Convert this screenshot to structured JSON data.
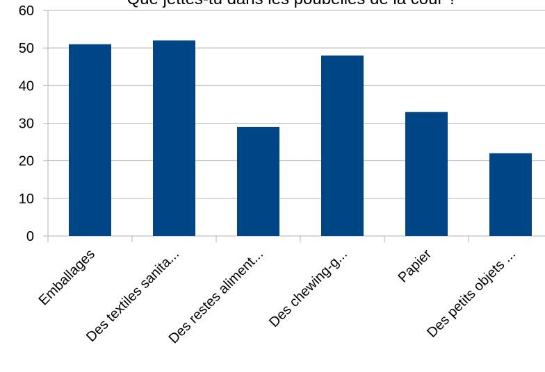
{
  "chart_data": {
    "type": "bar",
    "title": "Que jettes-tu dans les poubelles de la cour ?",
    "xlabel": "",
    "ylabel": "",
    "categories": [
      "Emballages",
      "Des textiles sanita...",
      "Des restes aliment...",
      "Des chewing-g...",
      "Papier",
      "Des petits objets ..."
    ],
    "values": [
      51,
      52,
      29,
      48,
      33,
      22
    ],
    "ylim": [
      0,
      60
    ],
    "yticks": [
      0,
      10,
      20,
      30,
      40,
      50,
      60
    ],
    "grid": true,
    "legend": "none",
    "colors": {
      "bar": "#004586",
      "grid": "#b3b3b3",
      "axis": "#b3b3b3"
    }
  }
}
